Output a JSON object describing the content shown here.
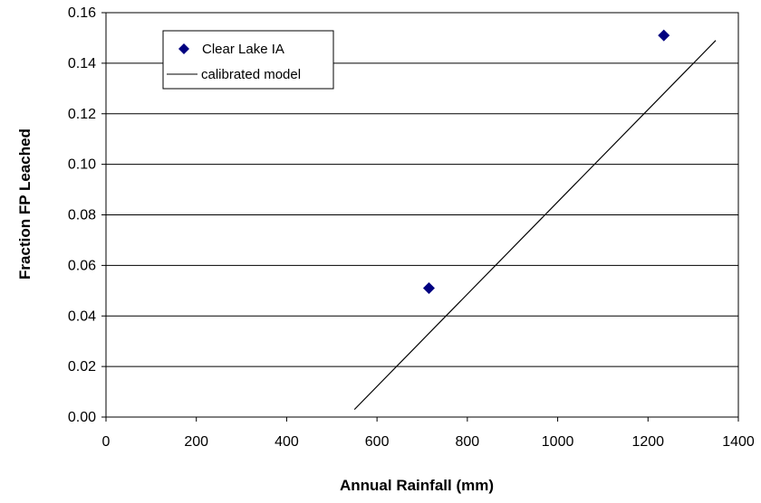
{
  "chart_data": {
    "type": "scatter",
    "title": "",
    "xlabel": "Annual Rainfall (mm)",
    "ylabel": "Fraction FP Leached",
    "xlim": [
      0,
      1400
    ],
    "ylim": [
      0,
      0.16
    ],
    "xticks": [
      0,
      200,
      400,
      600,
      800,
      1000,
      1200,
      1400
    ],
    "xtick_labels": [
      "0",
      "200",
      "400",
      "600",
      "800",
      "1000",
      "1200",
      "1400"
    ],
    "yticks": [
      0,
      0.02,
      0.04,
      0.06,
      0.08,
      0.1,
      0.12,
      0.14,
      0.16
    ],
    "ytick_labels": [
      "0.00",
      "0.02",
      "0.04",
      "0.06",
      "0.08",
      "0.10",
      "0.12",
      "0.14",
      "0.16"
    ],
    "grid": "horizontal",
    "legend_position": "top-left",
    "series": [
      {
        "name": "Clear Lake IA",
        "type": "scatter",
        "marker": "diamond",
        "color": "#000080",
        "x": [
          715,
          1235
        ],
        "y": [
          0.051,
          0.151
        ]
      },
      {
        "name": "calibrated model",
        "type": "line",
        "color": "#000000",
        "x": [
          550,
          1350
        ],
        "y": [
          0.003,
          0.149
        ]
      }
    ]
  }
}
